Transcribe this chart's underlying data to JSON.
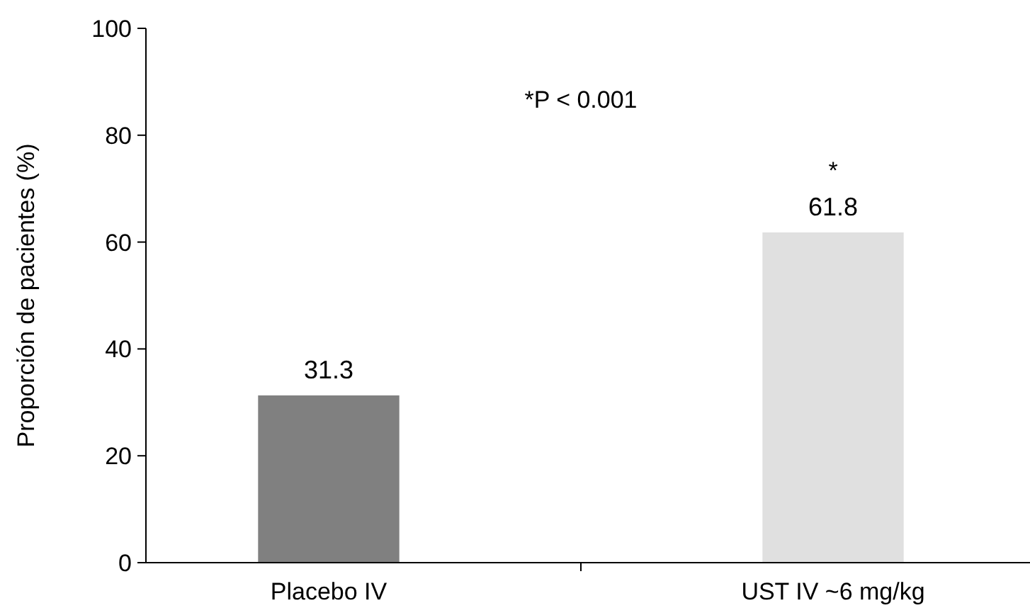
{
  "chart_data": {
    "type": "bar",
    "ylabel": "Proporción de pacientes (%)",
    "categories": [
      "Placebo IV",
      "UST IV ~6 mg/kg"
    ],
    "values": [
      31.3,
      61.8
    ],
    "colors": [
      "#808080",
      "#e0e0e0"
    ],
    "ylim": [
      0,
      100
    ],
    "yticks": [
      0,
      20,
      40,
      60,
      80,
      100
    ],
    "grid": false,
    "data_labels": true,
    "annotations": [
      "*P < 0.001",
      "*"
    ]
  }
}
